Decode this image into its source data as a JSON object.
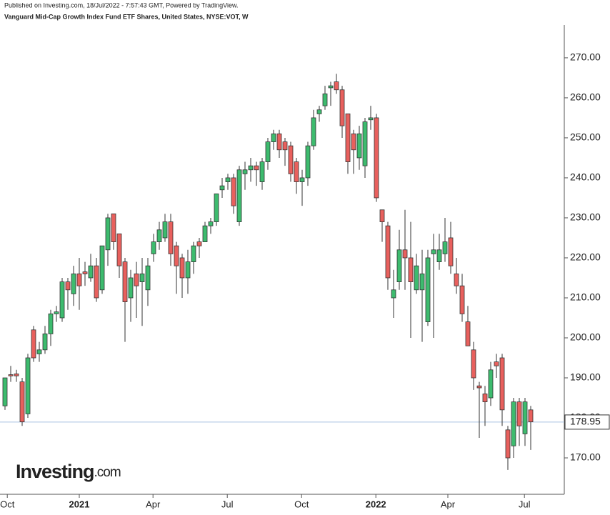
{
  "chart_data": {
    "type": "candlestick",
    "published": "Published on Investing.com, 18/Jul/2022 - 7:57:43 GMT, Powered by TradingView.",
    "title": "Vanguard Mid-Cap Growth Index Fund ETF Shares, United States, NYSE:VOT, W",
    "logo": [
      "Investing",
      ".com"
    ],
    "open": [
      183,
      190.8,
      191,
      189,
      181,
      202,
      196,
      197,
      201,
      206,
      205,
      214,
      211,
      216,
      216.5,
      215,
      218,
      212,
      222,
      231,
      226,
      219,
      210,
      216,
      214,
      212,
      221,
      224,
      225,
      229,
      223,
      220,
      215,
      219,
      224,
      224,
      228,
      229,
      237,
      239,
      240,
      229,
      241,
      242,
      243,
      239,
      244,
      249,
      251,
      249,
      248,
      244,
      239,
      240,
      248,
      256,
      258,
      262.5,
      264,
      262,
      256,
      251,
      245,
      243,
      254.5,
      255,
      232,
      228,
      210,
      214,
      222,
      220,
      212,
      212,
      204,
      221,
      219,
      221,
      225,
      216,
      213,
      204,
      197,
      188,
      186,
      185,
      194,
      195,
      177,
      173,
      184,
      176,
      182
    ],
    "high": [
      190,
      193,
      192,
      190,
      196,
      203,
      199,
      203,
      207,
      208,
      215,
      215,
      218,
      220,
      219,
      221,
      220,
      223,
      231,
      231,
      226,
      220,
      217,
      219,
      220,
      220,
      226,
      229,
      231,
      231,
      224,
      221,
      222,
      224,
      225,
      229,
      230,
      236,
      240,
      241,
      241,
      243,
      244,
      245,
      244,
      245,
      250,
      252,
      252,
      250,
      249,
      245,
      242,
      249,
      257,
      258,
      263,
      264,
      266,
      263,
      256,
      252,
      253,
      255,
      258,
      256,
      232,
      229,
      217,
      227,
      232,
      229,
      221,
      222,
      222,
      226,
      226,
      230,
      229,
      220,
      216,
      208,
      199,
      189,
      188,
      194,
      196,
      196,
      178,
      185,
      185,
      185,
      183
    ],
    "low": [
      182,
      189,
      189,
      178,
      180,
      194,
      194,
      196,
      198,
      204,
      204,
      207,
      208,
      207,
      213,
      214,
      209,
      211,
      218,
      222,
      215,
      199,
      204,
      205,
      203,
      208,
      219,
      222,
      224,
      218,
      211,
      210,
      211,
      216,
      220,
      224,
      226,
      228,
      235,
      237,
      231,
      228,
      237,
      239,
      238,
      237,
      242,
      247,
      245,
      243,
      239,
      236,
      233,
      238,
      247,
      254,
      257,
      258,
      261,
      250,
      241,
      241,
      242,
      240,
      252,
      234,
      224,
      212,
      205,
      212,
      212,
      200,
      211,
      199,
      203,
      200,
      217,
      219,
      216,
      211,
      204,
      198,
      187,
      175,
      178,
      183,
      190,
      178,
      167,
      170,
      173,
      173,
      172
    ],
    "close": [
      190,
      190.5,
      190.5,
      179,
      195,
      195,
      197,
      201,
      206,
      206.5,
      214,
      212,
      216,
      213,
      216,
      218,
      210,
      223,
      230,
      224,
      218,
      209,
      215,
      213,
      216,
      218,
      224,
      227,
      229,
      221,
      218,
      215,
      219,
      223,
      223,
      228,
      229,
      236,
      238,
      240,
      233,
      242,
      242,
      243,
      242,
      244,
      249,
      251,
      247,
      247,
      241,
      239,
      240,
      248,
      255,
      257,
      261,
      263,
      262,
      253,
      244,
      247,
      251,
      254,
      255,
      235,
      229,
      215,
      212,
      222,
      220,
      214,
      218,
      216,
      220,
      222,
      222,
      224,
      218,
      213,
      206,
      198,
      190,
      187.5,
      184,
      192,
      193,
      182,
      170,
      184,
      178,
      184,
      179
    ],
    "up_color": "#3dbb6e",
    "down_color": "#e8605d",
    "xlim": [
      -0.875,
      97.875
    ],
    "xticks": [
      {
        "value": 0.4,
        "label": "Oct"
      },
      {
        "value": 13,
        "label": "2021"
      },
      {
        "value": 25.9,
        "label": "Apr"
      },
      {
        "value": 38.9,
        "label": "Jul"
      },
      {
        "value": 51.9,
        "label": "Oct"
      },
      {
        "value": 64.9,
        "label": "2022"
      },
      {
        "value": 77.5,
        "label": "Apr"
      },
      {
        "value": 90.9,
        "label": "Jul"
      }
    ],
    "ylim": [
      160.9,
      278.2
    ],
    "yticks": [
      {
        "value": 170,
        "label": "170.00"
      },
      {
        "value": 180,
        "label": "180.00"
      },
      {
        "value": 190,
        "label": "190.00"
      },
      {
        "value": 200,
        "label": "200.00"
      },
      {
        "value": 210,
        "label": "210.00"
      },
      {
        "value": 220,
        "label": "220.00"
      },
      {
        "value": 230,
        "label": "230.00"
      },
      {
        "value": 240,
        "label": "240.00"
      },
      {
        "value": 250,
        "label": "250.00"
      },
      {
        "value": 260,
        "label": "260.00"
      },
      {
        "value": 270,
        "label": "270.00"
      }
    ],
    "last_price": {
      "value": 178.95,
      "label": "178.95"
    }
  }
}
